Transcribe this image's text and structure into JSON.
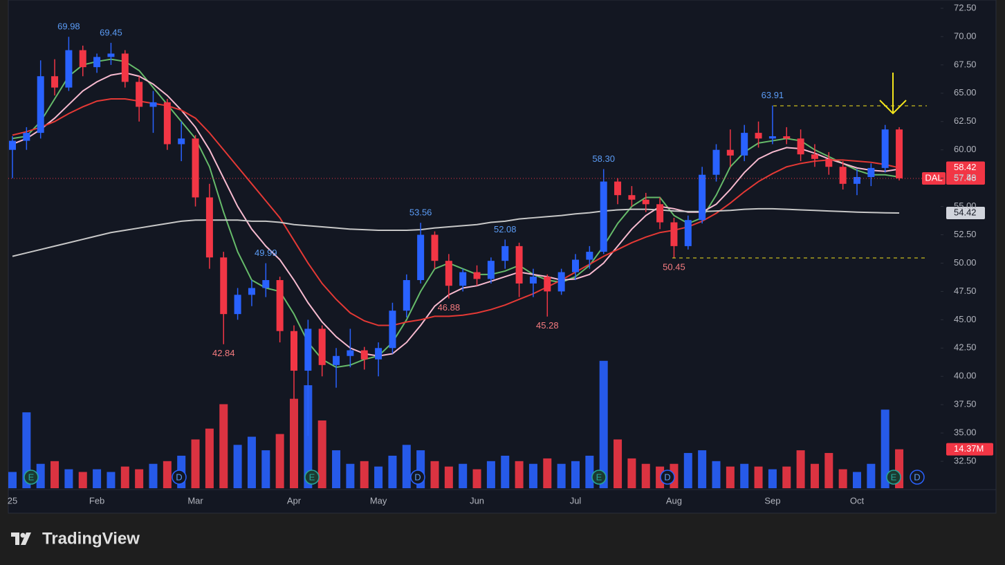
{
  "chart_data": {
    "type": "candlestick",
    "symbol": "DAL",
    "categories": [
      "25",
      null,
      null,
      null,
      null,
      null,
      "Feb",
      null,
      null,
      null,
      null,
      null,
      null,
      "Mar",
      null,
      null,
      null,
      null,
      null,
      null,
      "Apr",
      null,
      null,
      null,
      null,
      null,
      "May",
      null,
      null,
      null,
      null,
      null,
      null,
      "Jun",
      null,
      null,
      null,
      null,
      null,
      null,
      "Jul",
      null,
      null,
      null,
      null,
      null,
      null,
      "Aug",
      null,
      null,
      null,
      null,
      null,
      null,
      "Sep",
      null,
      null,
      null,
      null,
      null,
      "Oct",
      null,
      null,
      null
    ],
    "open": [
      60.0,
      60.8,
      61.5,
      66.5,
      65.5,
      68.8,
      67.3,
      68.2,
      68.5,
      66.0,
      63.8,
      64.2,
      60.5,
      61.0,
      55.8,
      50.5,
      45.5,
      47.2,
      47.8,
      48.5,
      44.0,
      40.5,
      44.2,
      41.0,
      41.8,
      42.3,
      41.5,
      42.5,
      45.8,
      48.5,
      52.5,
      50.2,
      48.0,
      49.2,
      48.6,
      50.2,
      51.5,
      48.2,
      48.8,
      47.5,
      49.2,
      50.3,
      51.0,
      57.2,
      56.0,
      55.6,
      55.2,
      53.6,
      51.5,
      53.8,
      57.8,
      60.0,
      59.5,
      61.5,
      61.0,
      61.2,
      61.0,
      59.6,
      59.2,
      58.5,
      57.0,
      57.6,
      58.4,
      61.8
    ],
    "high": [
      61.2,
      62.0,
      67.9,
      68.0,
      69.98,
      69.2,
      68.5,
      69.45,
      68.8,
      66.5,
      65.2,
      64.5,
      62.5,
      61.3,
      57.0,
      51.0,
      47.8,
      48.5,
      49.99,
      48.8,
      44.5,
      45.0,
      44.5,
      42.5,
      44.2,
      42.6,
      43.0,
      46.5,
      49.0,
      53.56,
      52.8,
      50.8,
      49.5,
      49.8,
      50.5,
      52.08,
      51.8,
      49.5,
      49.0,
      49.5,
      50.8,
      51.5,
      58.3,
      57.5,
      56.8,
      56.2,
      55.8,
      54.0,
      54.2,
      58.5,
      60.5,
      61.8,
      62.2,
      62.5,
      63.91,
      62.0,
      61.8,
      60.5,
      59.8,
      59.0,
      58.3,
      58.8,
      62.2,
      62.0
    ],
    "low": [
      57.5,
      60.0,
      61.0,
      64.8,
      65.2,
      66.5,
      66.8,
      67.5,
      65.5,
      62.5,
      61.5,
      60.0,
      59.0,
      55.0,
      49.5,
      42.84,
      45.0,
      46.2,
      47.0,
      43.0,
      38.0,
      34.74,
      40.0,
      39.0,
      40.8,
      40.6,
      40.0,
      42.0,
      45.2,
      48.2,
      49.5,
      46.88,
      47.5,
      48.0,
      48.2,
      49.5,
      47.0,
      47.0,
      45.28,
      47.2,
      48.5,
      49.5,
      50.8,
      55.2,
      55.0,
      54.5,
      53.0,
      50.45,
      51.2,
      53.5,
      57.2,
      58.5,
      59.0,
      60.2,
      60.5,
      60.5,
      59.0,
      58.5,
      57.8,
      56.5,
      56.0,
      56.8,
      58.0,
      57.3
    ],
    "close": [
      60.8,
      61.5,
      66.5,
      65.5,
      68.8,
      67.3,
      68.2,
      68.5,
      66.0,
      63.8,
      64.2,
      60.5,
      61.0,
      55.8,
      50.5,
      45.5,
      47.2,
      47.8,
      48.5,
      44.0,
      40.5,
      44.2,
      41.0,
      41.8,
      42.3,
      41.5,
      42.5,
      45.8,
      48.5,
      52.5,
      50.2,
      48.0,
      49.2,
      48.6,
      50.2,
      51.5,
      48.2,
      48.8,
      47.5,
      49.2,
      50.3,
      51.0,
      57.2,
      56.0,
      55.6,
      55.2,
      53.6,
      51.5,
      53.8,
      57.8,
      60.0,
      59.5,
      61.5,
      61.0,
      61.2,
      61.0,
      59.6,
      59.2,
      58.5,
      57.0,
      57.6,
      58.4,
      61.8,
      57.48
    ],
    "up_color": "#2962ff",
    "down_color": "#f23645",
    "series": [
      {
        "color": "#66bb6a",
        "values": [
          61.0,
          61.2,
          62.5,
          64.5,
          66.5,
          67.5,
          67.8,
          68.0,
          67.8,
          67.0,
          65.5,
          64.0,
          62.5,
          61.0,
          58.5,
          54.5,
          51.0,
          48.5,
          47.8,
          47.5,
          45.5,
          43.0,
          41.5,
          40.8,
          41.0,
          41.5,
          41.8,
          43.0,
          45.0,
          47.5,
          49.5,
          50.0,
          49.5,
          49.0,
          49.0,
          49.3,
          49.8,
          49.0,
          48.5,
          48.3,
          48.8,
          49.8,
          51.5,
          53.5,
          55.0,
          55.8,
          55.8,
          54.2,
          53.5,
          54.0,
          56.0,
          58.5,
          59.8,
          60.6,
          60.8,
          61.0,
          60.8,
          60.0,
          59.4,
          58.8,
          58.2,
          57.8,
          57.8,
          57.6
        ]
      },
      {
        "color": "#f8bbd0",
        "values": [
          60.5,
          61.0,
          61.8,
          62.8,
          64.0,
          65.2,
          66.0,
          66.6,
          66.8,
          66.5,
          65.8,
          64.8,
          63.5,
          62.0,
          60.0,
          57.5,
          55.0,
          53.0,
          51.5,
          50.3,
          48.5,
          46.5,
          44.8,
          43.5,
          42.5,
          42.0,
          41.8,
          42.0,
          43.0,
          44.5,
          46.2,
          47.2,
          47.8,
          48.0,
          48.4,
          48.8,
          49.2,
          49.0,
          48.8,
          48.5,
          48.6,
          49.0,
          50.0,
          51.5,
          53.0,
          54.2,
          55.0,
          54.8,
          54.5,
          54.5,
          55.2,
          56.5,
          58.0,
          59.2,
          59.8,
          60.2,
          60.1,
          59.7,
          59.2,
          58.8,
          58.4,
          58.2,
          58.1,
          58.3
        ]
      },
      {
        "color": "#e53935",
        "values": [
          61.3,
          61.6,
          62.0,
          62.5,
          63.2,
          63.8,
          64.3,
          64.5,
          64.5,
          64.3,
          64.1,
          63.9,
          63.5,
          62.8,
          61.5,
          60.0,
          58.5,
          57.0,
          55.5,
          54.0,
          52.0,
          50.0,
          48.2,
          46.8,
          45.6,
          44.9,
          44.5,
          44.5,
          44.8,
          45.0,
          45.3,
          45.3,
          45.4,
          45.6,
          45.9,
          46.3,
          46.8,
          47.3,
          47.9,
          48.5,
          49.2,
          49.9,
          50.6,
          51.2,
          51.8,
          52.3,
          52.7,
          52.9,
          53.2,
          53.7,
          54.4,
          55.3,
          56.3,
          57.2,
          57.9,
          58.5,
          58.8,
          59.0,
          59.1,
          59.1,
          59.0,
          58.9,
          58.7,
          58.42
        ]
      },
      {
        "color": "#c8c8c8",
        "values": [
          50.6,
          50.9,
          51.2,
          51.5,
          51.8,
          52.1,
          52.4,
          52.7,
          52.9,
          53.1,
          53.3,
          53.5,
          53.7,
          53.8,
          53.8,
          53.8,
          53.8,
          53.7,
          53.7,
          53.6,
          53.4,
          53.3,
          53.2,
          53.1,
          53.0,
          52.95,
          52.9,
          52.9,
          52.9,
          52.95,
          53.1,
          53.2,
          53.3,
          53.4,
          53.6,
          53.7,
          53.9,
          54.0,
          54.1,
          54.2,
          54.35,
          54.45,
          54.6,
          54.7,
          54.75,
          54.75,
          54.7,
          54.6,
          54.55,
          54.55,
          54.6,
          54.65,
          54.75,
          54.8,
          54.8,
          54.75,
          54.7,
          54.65,
          54.6,
          54.55,
          54.5,
          54.47,
          54.44,
          54.42
        ]
      }
    ],
    "volume": {
      "values": [
        6,
        28,
        9,
        10,
        7,
        6,
        7,
        6,
        8,
        7,
        9,
        10,
        12,
        18,
        22,
        31,
        16,
        19,
        14,
        20,
        33,
        38,
        25,
        14,
        9,
        10,
        8,
        12,
        16,
        14,
        10,
        8,
        9,
        7,
        10,
        12,
        10,
        9,
        11,
        9,
        10,
        12,
        47,
        18,
        11,
        9,
        8,
        9,
        13,
        14,
        10,
        8,
        9,
        8,
        7,
        8,
        14,
        9,
        13,
        7,
        6,
        9,
        29,
        14.37
      ],
      "value_labels": [
        null,
        null,
        null,
        null,
        null,
        null,
        null,
        null,
        null,
        null,
        null,
        null,
        null,
        null,
        null,
        null,
        null,
        null,
        null,
        null,
        null,
        null,
        null,
        null,
        null,
        null,
        null,
        null,
        null,
        null,
        null,
        null,
        null,
        null,
        null,
        null,
        null,
        null,
        null,
        null,
        null,
        null,
        null,
        null,
        null,
        null,
        null,
        null,
        null,
        null,
        null,
        null,
        null,
        null,
        null,
        null,
        null,
        null,
        null,
        null,
        null,
        null,
        null,
        "14.37M"
      ],
      "ylim": [
        0,
        75
      ]
    },
    "ylim": [
      30.0,
      73.23
    ],
    "yticks": [
      {
        "value": 32.5,
        "label": "32.50"
      },
      {
        "value": 35,
        "label": "35.00"
      },
      {
        "value": 37.5,
        "label": "37.50"
      },
      {
        "value": 40,
        "label": "40.00"
      },
      {
        "value": 42.5,
        "label": "42.50"
      },
      {
        "value": 45,
        "label": "45.00"
      },
      {
        "value": 47.5,
        "label": "47.50"
      },
      {
        "value": 50,
        "label": "50.00"
      },
      {
        "value": 52.5,
        "label": "52.50"
      },
      {
        "value": 55,
        "label": "55.00"
      },
      {
        "value": 57.5,
        "label": "57.50"
      },
      {
        "value": 60,
        "label": "60.00"
      },
      {
        "value": 62.5,
        "label": "62.50"
      },
      {
        "value": 65,
        "label": "65.00"
      },
      {
        "value": 67.5,
        "label": "67.50"
      },
      {
        "value": 70,
        "label": "70.00"
      },
      {
        "value": 72.5,
        "label": "72.50"
      }
    ],
    "annotations": [
      "69.98",
      "69.45",
      "42.84",
      "49.99",
      "53.56",
      "46.88",
      "52.08",
      "45.28",
      "58.30",
      "50.45",
      "63.91"
    ],
    "price_labels": [
      {
        "value": 58.42,
        "color": "#f23645"
      },
      {
        "value": 57.48,
        "color": "#f23645"
      },
      {
        "value": 54.42,
        "color": "#d1d4dc"
      }
    ],
    "events": [
      "E",
      "D",
      "E",
      "D",
      "E",
      "D",
      "E",
      "D"
    ]
  },
  "brand": "TradingView"
}
